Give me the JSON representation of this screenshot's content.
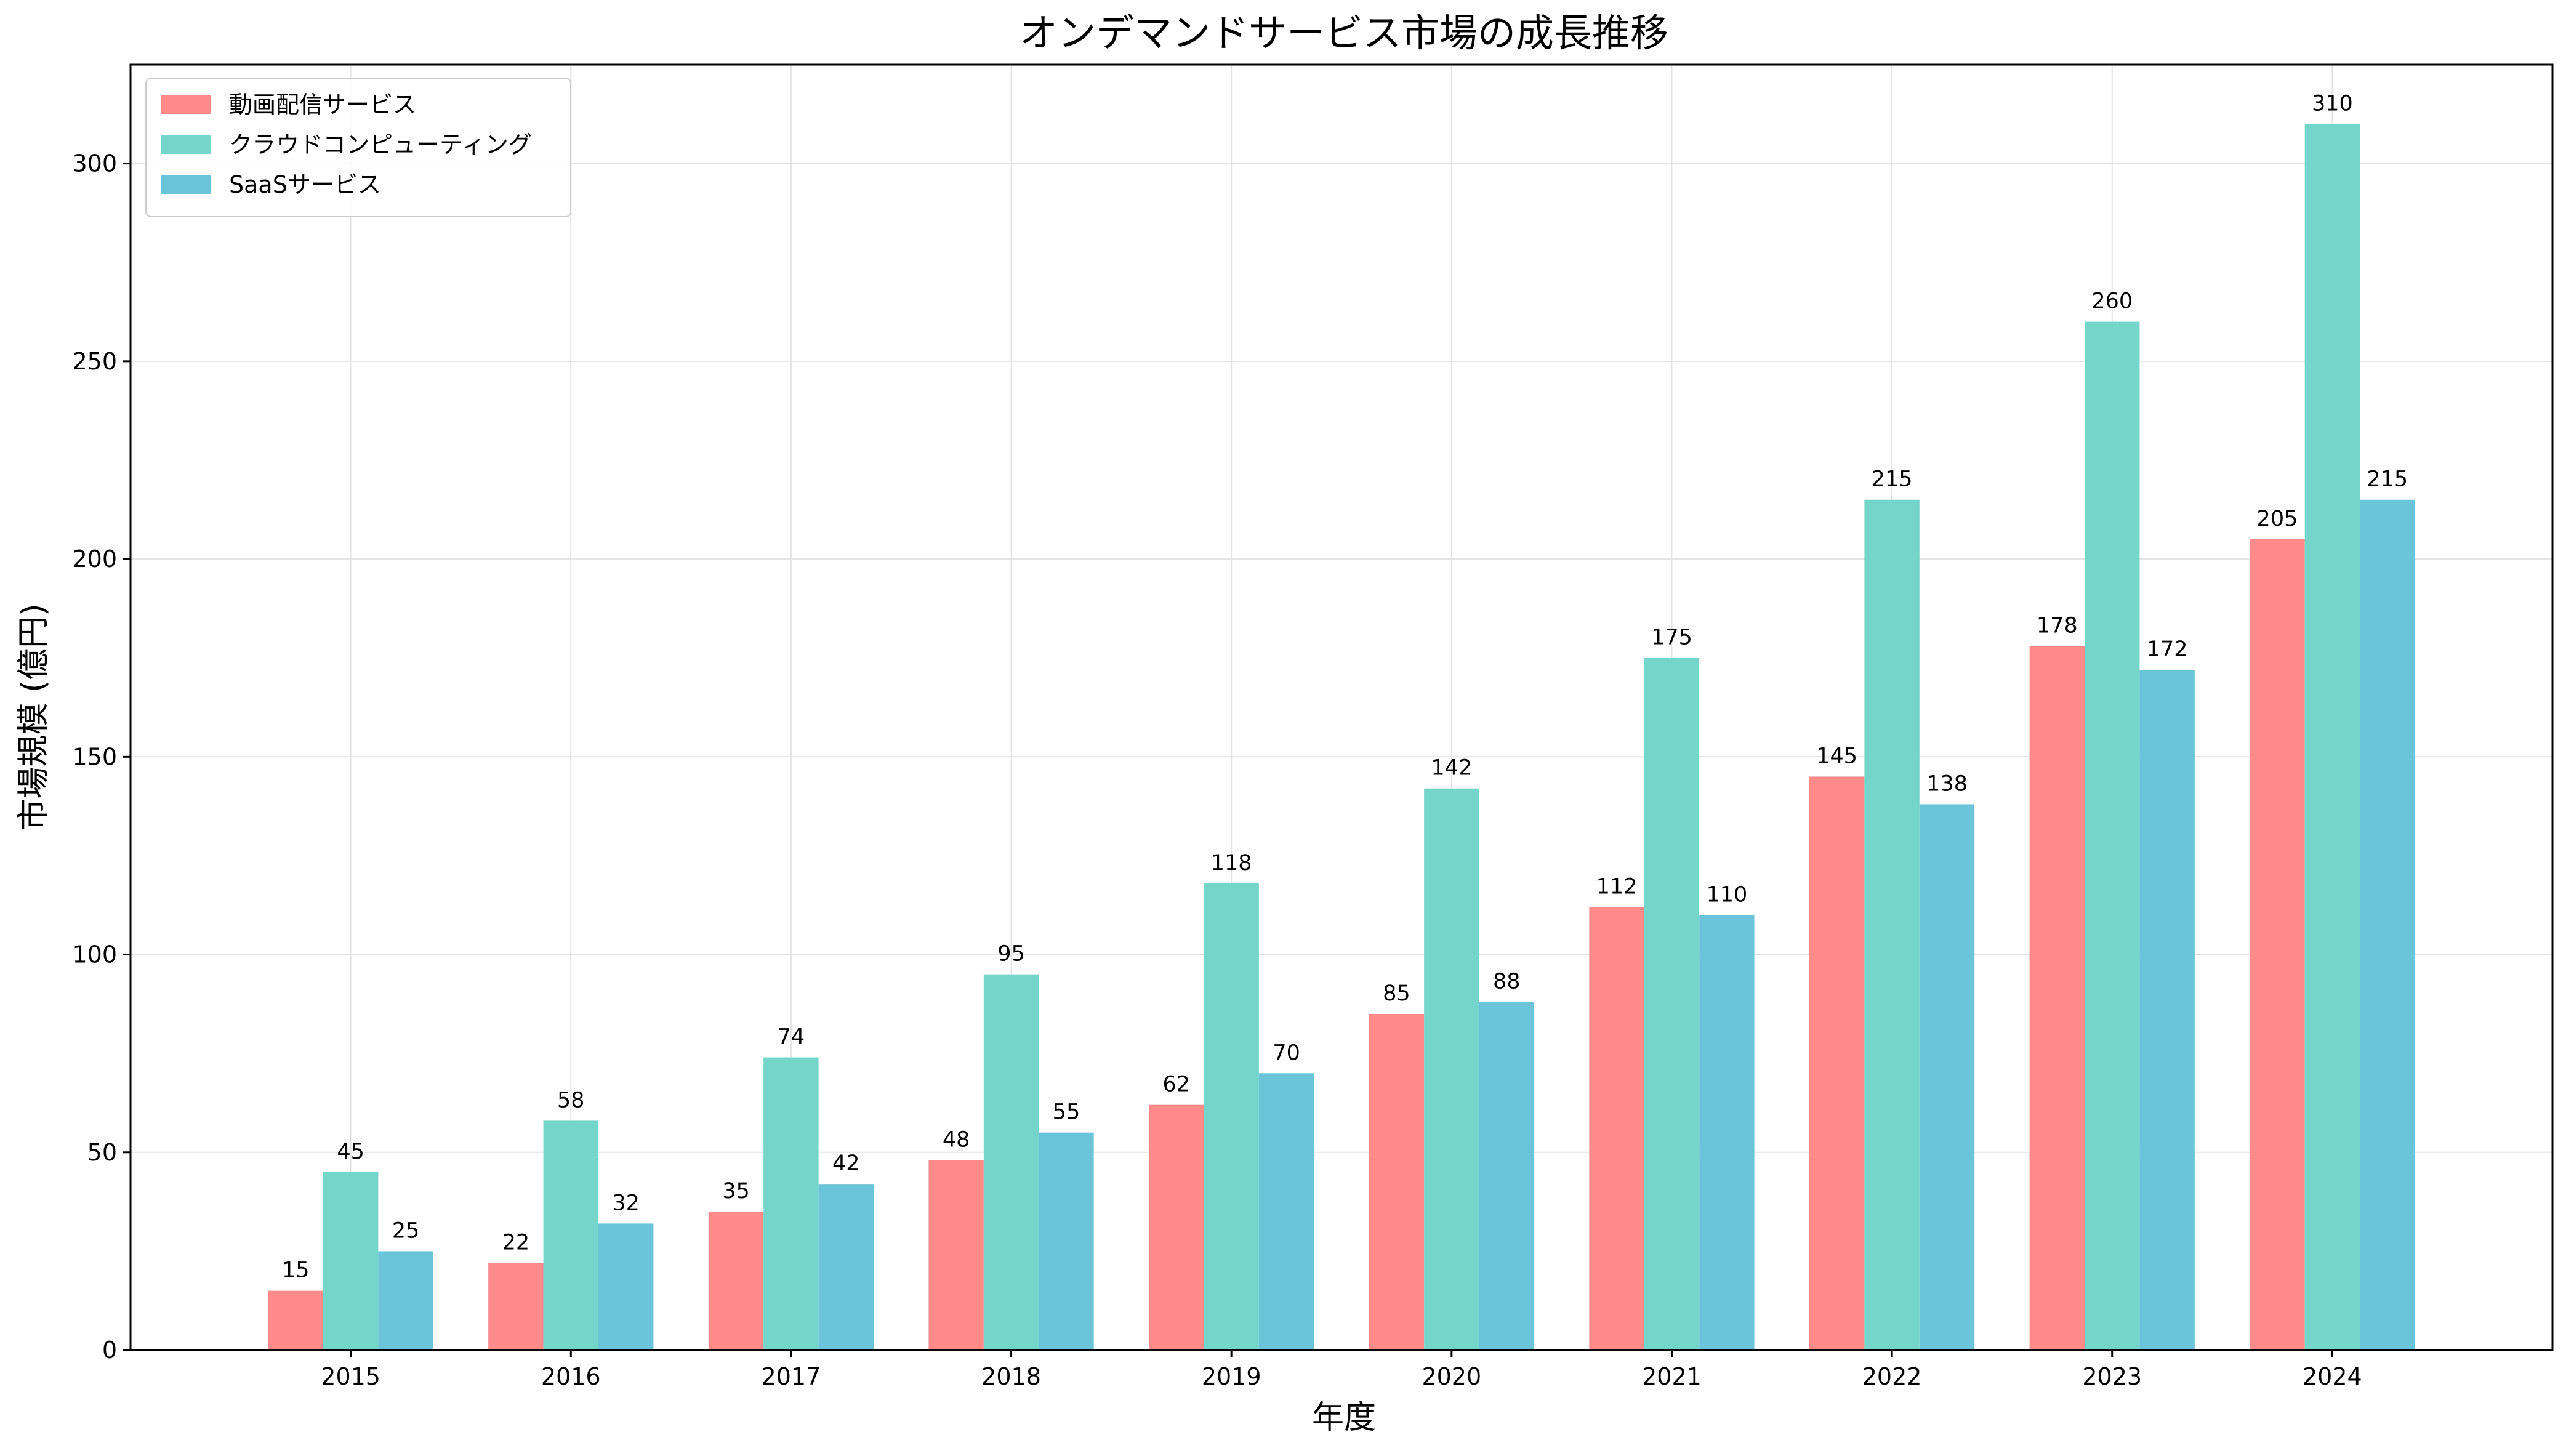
{
  "chart_data": {
    "type": "bar",
    "title": "オンデマンドサービス市場の成長推移",
    "xlabel": "年度",
    "ylabel": "市場規模 (億円)",
    "categories": [
      "2015",
      "2016",
      "2017",
      "2018",
      "2019",
      "2020",
      "2021",
      "2022",
      "2023",
      "2024"
    ],
    "series": [
      {
        "name": "動画配信サービス",
        "color": "#FF8A8A",
        "values": [
          15,
          22,
          35,
          48,
          62,
          85,
          112,
          145,
          178,
          205
        ]
      },
      {
        "name": "クラウドコンピューティング",
        "color": "#74D6CB",
        "values": [
          45,
          58,
          74,
          95,
          118,
          142,
          175,
          215,
          260,
          310
        ]
      },
      {
        "name": "SaaSサービス",
        "color": "#6AC4DA",
        "values": [
          25,
          32,
          42,
          55,
          70,
          88,
          110,
          138,
          172,
          215
        ]
      }
    ],
    "ylim": [
      0,
      325
    ],
    "yticks": [
      0,
      50,
      100,
      150,
      200,
      250,
      300
    ],
    "grid": true,
    "legend_position": "top-left"
  }
}
